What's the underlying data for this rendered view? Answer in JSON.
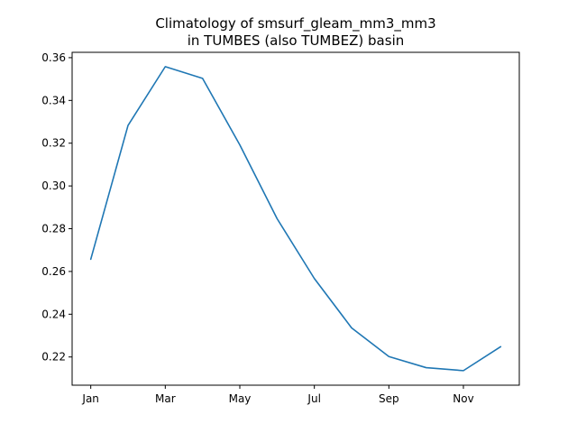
{
  "chart_data": {
    "type": "line",
    "title_line1": "Climatology of smsurf_gleam_mm3_mm3",
    "title_line2": "in TUMBES (also TUMBEZ) basin",
    "xlabel": "",
    "ylabel": "",
    "x": [
      1,
      2,
      3,
      4,
      5,
      6,
      7,
      8,
      9,
      10,
      11,
      12
    ],
    "xlim": [
      0.5,
      12.5
    ],
    "x_ticks": [
      {
        "value": 1,
        "label": "Jan"
      },
      {
        "value": 3,
        "label": "Mar"
      },
      {
        "value": 5,
        "label": "May"
      },
      {
        "value": 7,
        "label": "Jul"
      },
      {
        "value": 9,
        "label": "Sep"
      },
      {
        "value": 11,
        "label": "Nov"
      }
    ],
    "ylim": [
      0.2068,
      0.3625
    ],
    "y_ticks": [
      {
        "value": 0.22,
        "label": "0.22"
      },
      {
        "value": 0.24,
        "label": "0.24"
      },
      {
        "value": 0.26,
        "label": "0.26"
      },
      {
        "value": 0.28,
        "label": "0.28"
      },
      {
        "value": 0.3,
        "label": "0.30"
      },
      {
        "value": 0.32,
        "label": "0.32"
      },
      {
        "value": 0.34,
        "label": "0.34"
      },
      {
        "value": 0.36,
        "label": "0.36"
      }
    ],
    "series": [
      {
        "values": [
          0.2657,
          0.3283,
          0.3558,
          0.3503,
          0.3192,
          0.2847,
          0.2567,
          0.2336,
          0.2202,
          0.215,
          0.2136,
          0.2248
        ],
        "color": "#1f77b4"
      }
    ],
    "grid": false,
    "legend": "none"
  }
}
